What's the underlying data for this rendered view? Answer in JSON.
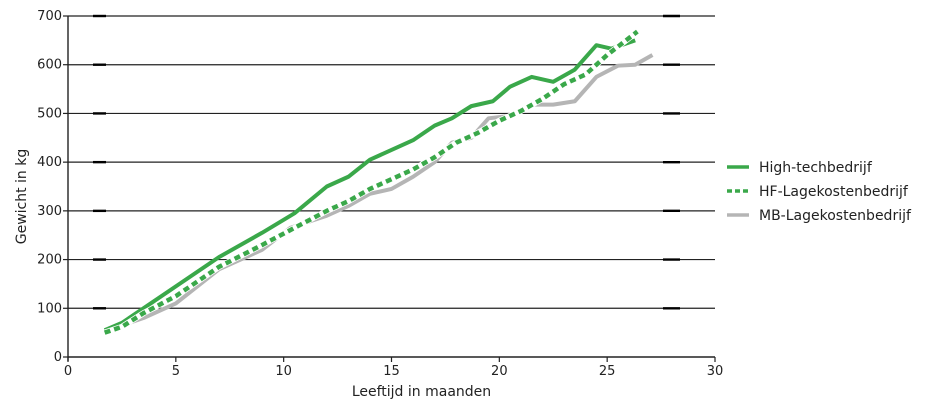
{
  "chart_data": {
    "type": "line",
    "title": "",
    "xlabel": "Leeftijd in maanden",
    "ylabel": "Gewicht in kg",
    "xlim": [
      0,
      30
    ],
    "ylim": [
      0,
      700
    ],
    "x_ticks": [
      0,
      5,
      10,
      15,
      20,
      25,
      30
    ],
    "y_ticks": [
      0,
      100,
      200,
      300,
      400,
      500,
      600,
      700
    ],
    "grid": "horizontal",
    "legend_position": "right",
    "series": [
      {
        "name": "High-techbedrijf",
        "style": "solid",
        "color": "#3aa84a",
        "x": [
          1.7,
          2.5,
          3.5,
          5,
          7,
          9,
          10.5,
          12,
          13,
          14,
          15,
          16,
          17,
          17.8,
          18.7,
          19.7,
          20.5,
          21.5,
          22.5,
          23.5,
          24.5,
          25.2,
          26.3
        ],
        "y": [
          55,
          70,
          100,
          145,
          205,
          255,
          295,
          350,
          370,
          405,
          425,
          445,
          475,
          490,
          515,
          525,
          555,
          575,
          565,
          590,
          640,
          633,
          650
        ]
      },
      {
        "name": "HF-Lagekostenbedrijf",
        "style": "dashed",
        "color": "#3aa84a",
        "x": [
          1.7,
          2.5,
          3.5,
          5,
          7,
          9,
          10.5,
          12,
          13,
          14,
          15,
          16,
          17,
          18,
          19,
          20,
          21,
          22,
          23,
          24,
          25,
          26.4
        ],
        "y": [
          50,
          62,
          90,
          125,
          185,
          230,
          265,
          300,
          320,
          345,
          365,
          385,
          410,
          440,
          460,
          485,
          505,
          530,
          560,
          580,
          620,
          668
        ]
      },
      {
        "name": "MB-Lagekostenbedrijf",
        "style": "solid",
        "color": "#b5b5b5",
        "x": [
          1.7,
          2.5,
          3.5,
          5,
          7,
          9,
          10.3,
          12,
          13,
          14,
          15,
          16,
          17,
          17.8,
          18.7,
          19.5,
          20.5,
          21.5,
          22.5,
          23.5,
          24.5,
          25.5,
          26.3,
          27.1
        ],
        "y": [
          55,
          65,
          80,
          110,
          180,
          220,
          265,
          290,
          310,
          335,
          345,
          370,
          400,
          440,
          450,
          490,
          495,
          518,
          518,
          525,
          575,
          598,
          600,
          620
        ]
      }
    ]
  }
}
